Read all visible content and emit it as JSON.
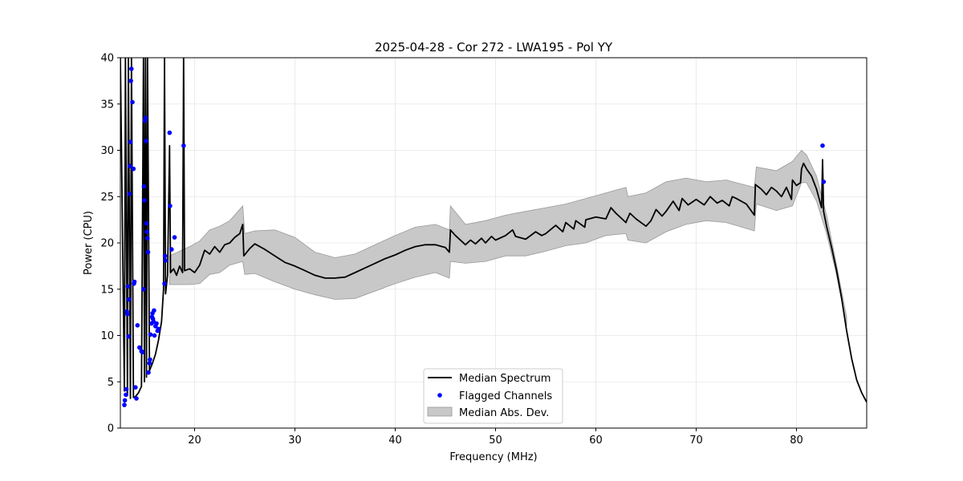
{
  "chart_data": {
    "type": "line",
    "title": "2025-04-28 - Cor 272 - LWA195 - Pol YY",
    "xlabel": "Frequency (MHz)",
    "ylabel": "Power (CPU)",
    "xlim": [
      12.6,
      87.0
    ],
    "ylim": [
      0,
      40
    ],
    "x_ticks": [
      "20",
      "30",
      "40",
      "50",
      "60",
      "70",
      "80"
    ],
    "y_ticks": [
      "0",
      "5",
      "10",
      "15",
      "20",
      "25",
      "30",
      "35",
      "40"
    ],
    "grid": true,
    "legend_position": "bottom-center",
    "colors": {
      "median": "#000000",
      "flagged": "#0000ff",
      "mad_fill": "#c8c8c8",
      "mad_edge": "#999999"
    },
    "series": [
      {
        "name": "Median Spectrum",
        "kind": "line",
        "points": [
          [
            12.6,
            40
          ],
          [
            13.0,
            4.0
          ],
          [
            13.1,
            40
          ],
          [
            13.3,
            3.5
          ],
          [
            13.4,
            40
          ],
          [
            13.6,
            3.2
          ],
          [
            13.7,
            40
          ],
          [
            13.9,
            3.3
          ],
          [
            14.1,
            3.4
          ],
          [
            14.4,
            3.8
          ],
          [
            14.7,
            4.5
          ],
          [
            14.9,
            40
          ],
          [
            15.0,
            5.0
          ],
          [
            15.1,
            40
          ],
          [
            15.2,
            5.5
          ],
          [
            15.3,
            40
          ],
          [
            15.5,
            6.2
          ],
          [
            15.8,
            7.0
          ],
          [
            16.1,
            8.0
          ],
          [
            16.4,
            9.5
          ],
          [
            16.7,
            11.5
          ],
          [
            16.9,
            15.0
          ],
          [
            17.0,
            40
          ],
          [
            17.1,
            14.5
          ],
          [
            17.3,
            16.5
          ],
          [
            17.5,
            30.5
          ],
          [
            17.6,
            16.8
          ],
          [
            17.9,
            17.2
          ],
          [
            18.2,
            16.5
          ],
          [
            18.5,
            17.5
          ],
          [
            18.8,
            16.8
          ],
          [
            18.9,
            40
          ],
          [
            19.0,
            17.0
          ],
          [
            19.5,
            17.2
          ],
          [
            20.0,
            16.8
          ],
          [
            20.5,
            17.6
          ],
          [
            21.0,
            19.2
          ],
          [
            21.5,
            18.8
          ],
          [
            22.0,
            19.6
          ],
          [
            22.5,
            19.0
          ],
          [
            23.0,
            19.8
          ],
          [
            23.5,
            20.0
          ],
          [
            24.0,
            20.6
          ],
          [
            24.5,
            21.0
          ],
          [
            24.8,
            22.0
          ],
          [
            24.9,
            18.6
          ],
          [
            25.5,
            19.4
          ],
          [
            26.0,
            19.9
          ],
          [
            27.0,
            19.3
          ],
          [
            28.0,
            18.6
          ],
          [
            29.0,
            17.9
          ],
          [
            30.0,
            17.5
          ],
          [
            31.0,
            17.0
          ],
          [
            32.0,
            16.5
          ],
          [
            33.0,
            16.2
          ],
          [
            34.0,
            16.2
          ],
          [
            35.0,
            16.3
          ],
          [
            36.0,
            16.8
          ],
          [
            37.0,
            17.3
          ],
          [
            38.0,
            17.8
          ],
          [
            39.0,
            18.3
          ],
          [
            40.0,
            18.7
          ],
          [
            41.0,
            19.2
          ],
          [
            42.0,
            19.6
          ],
          [
            43.0,
            19.8
          ],
          [
            44.0,
            19.8
          ],
          [
            45.0,
            19.5
          ],
          [
            45.4,
            19.0
          ],
          [
            45.5,
            21.4
          ],
          [
            46.0,
            20.8
          ],
          [
            47.0,
            19.8
          ],
          [
            47.5,
            20.3
          ],
          [
            48.0,
            19.9
          ],
          [
            48.6,
            20.5
          ],
          [
            49.0,
            20.0
          ],
          [
            49.6,
            20.7
          ],
          [
            50.0,
            20.3
          ],
          [
            51.0,
            20.8
          ],
          [
            51.7,
            21.4
          ],
          [
            52.0,
            20.7
          ],
          [
            53.0,
            20.4
          ],
          [
            54.0,
            21.2
          ],
          [
            54.6,
            20.8
          ],
          [
            55.0,
            21.0
          ],
          [
            56.0,
            21.9
          ],
          [
            56.7,
            21.2
          ],
          [
            57.0,
            22.2
          ],
          [
            57.8,
            21.5
          ],
          [
            58.0,
            22.4
          ],
          [
            58.9,
            21.7
          ],
          [
            59.0,
            22.5
          ],
          [
            60.0,
            22.8
          ],
          [
            61.0,
            22.6
          ],
          [
            61.5,
            23.8
          ],
          [
            62.0,
            23.2
          ],
          [
            63.0,
            22.2
          ],
          [
            63.1,
            22.5
          ],
          [
            63.4,
            23.2
          ],
          [
            64.0,
            22.6
          ],
          [
            65.0,
            21.8
          ],
          [
            65.5,
            22.4
          ],
          [
            66.0,
            23.6
          ],
          [
            66.6,
            22.9
          ],
          [
            67.0,
            23.4
          ],
          [
            67.7,
            24.5
          ],
          [
            68.3,
            23.5
          ],
          [
            68.6,
            24.8
          ],
          [
            69.2,
            24.1
          ],
          [
            70.0,
            24.7
          ],
          [
            70.8,
            24.1
          ],
          [
            71.4,
            25.0
          ],
          [
            72.1,
            24.3
          ],
          [
            72.6,
            24.6
          ],
          [
            73.3,
            24.0
          ],
          [
            73.6,
            25.0
          ],
          [
            74.0,
            24.8
          ],
          [
            75.0,
            24.2
          ],
          [
            75.8,
            23.0
          ],
          [
            75.9,
            26.3
          ],
          [
            76.5,
            25.8
          ],
          [
            77.0,
            25.2
          ],
          [
            77.5,
            26.0
          ],
          [
            78.0,
            25.6
          ],
          [
            78.5,
            25.0
          ],
          [
            79.0,
            26.0
          ],
          [
            79.5,
            24.7
          ],
          [
            79.6,
            26.8
          ],
          [
            80.0,
            26.2
          ],
          [
            80.4,
            26.5
          ],
          [
            80.5,
            28.0
          ],
          [
            80.7,
            28.6
          ],
          [
            81.0,
            28.0
          ],
          [
            81.5,
            27.2
          ],
          [
            82.0,
            25.8
          ],
          [
            82.5,
            23.8
          ],
          [
            82.6,
            29.0
          ],
          [
            82.7,
            23.4
          ],
          [
            83.0,
            21.8
          ],
          [
            83.5,
            19.5
          ],
          [
            84.0,
            17.0
          ],
          [
            84.5,
            14.0
          ],
          [
            85.0,
            10.5
          ],
          [
            85.5,
            7.5
          ],
          [
            86.0,
            5.2
          ],
          [
            86.5,
            3.8
          ],
          [
            87.0,
            2.8
          ]
        ]
      },
      {
        "name": "Flagged Channels",
        "kind": "scatter",
        "points": [
          [
            13.0,
            2.5
          ],
          [
            13.05,
            3.0
          ],
          [
            13.15,
            3.6
          ],
          [
            13.2,
            4.2
          ],
          [
            13.25,
            12.6
          ],
          [
            13.3,
            12.3
          ],
          [
            13.35,
            15.3
          ],
          [
            13.4,
            9.9
          ],
          [
            13.45,
            13.9
          ],
          [
            13.5,
            25.3
          ],
          [
            13.55,
            28.3
          ],
          [
            13.6,
            30.9
          ],
          [
            13.65,
            37.5
          ],
          [
            13.7,
            38.8
          ],
          [
            13.8,
            35.2
          ],
          [
            13.9,
            28.0
          ],
          [
            13.95,
            15.6
          ],
          [
            14.0,
            15.8
          ],
          [
            14.1,
            4.4
          ],
          [
            14.2,
            3.2
          ],
          [
            14.3,
            11.1
          ],
          [
            14.5,
            8.7
          ],
          [
            14.7,
            8.3
          ],
          [
            14.8,
            8.2
          ],
          [
            14.9,
            15.0
          ],
          [
            14.95,
            26.1
          ],
          [
            15.0,
            24.6
          ],
          [
            15.05,
            33.2
          ],
          [
            15.1,
            33.5
          ],
          [
            15.15,
            31.0
          ],
          [
            15.2,
            22.1
          ],
          [
            15.25,
            21.2
          ],
          [
            15.3,
            20.5
          ],
          [
            15.35,
            19.0
          ],
          [
            15.4,
            6.0
          ],
          [
            15.5,
            7.0
          ],
          [
            15.55,
            7.4
          ],
          [
            15.6,
            10.1
          ],
          [
            15.7,
            11.3
          ],
          [
            15.75,
            12.0
          ],
          [
            15.8,
            12.4
          ],
          [
            15.85,
            11.8
          ],
          [
            15.9,
            11.5
          ],
          [
            15.95,
            12.7
          ],
          [
            16.0,
            10.0
          ],
          [
            16.1,
            11.0
          ],
          [
            16.2,
            11.3
          ],
          [
            16.3,
            10.5
          ],
          [
            16.4,
            10.7
          ],
          [
            17.0,
            15.6
          ],
          [
            17.05,
            18.6
          ],
          [
            17.1,
            18.1
          ],
          [
            17.5,
            31.9
          ],
          [
            17.55,
            24.0
          ],
          [
            17.7,
            19.3
          ],
          [
            18.0,
            20.6
          ],
          [
            18.9,
            30.5
          ],
          [
            82.6,
            30.5
          ],
          [
            82.7,
            26.6
          ]
        ]
      },
      {
        "name": "Median Abs. Dev.",
        "kind": "band",
        "x": [
          17.5,
          18.5,
          19.5,
          20.5,
          21.5,
          22.5,
          23.5,
          24.8,
          25.0,
          26.0,
          28.0,
          30.0,
          32.0,
          34.0,
          36.0,
          38.0,
          40.0,
          42.0,
          44.0,
          45.4,
          45.5,
          47.0,
          49.0,
          51.0,
          53.0,
          55.0,
          57.0,
          59.0,
          61.0,
          63.0,
          63.2,
          65.0,
          67.0,
          69.0,
          71.0,
          73.0,
          75.8,
          76.0,
          78.0,
          79.6,
          80.5,
          81.0,
          82.0,
          83.0,
          84.0,
          85.0
        ],
        "lower": [
          15.5,
          15.5,
          15.5,
          15.6,
          16.6,
          16.8,
          17.6,
          18.0,
          16.6,
          16.7,
          15.8,
          15.0,
          14.4,
          13.9,
          14.0,
          14.8,
          15.6,
          16.3,
          16.8,
          16.2,
          18.0,
          17.8,
          18.0,
          18.6,
          18.6,
          19.1,
          19.7,
          20.0,
          20.8,
          21.0,
          20.3,
          20.0,
          21.2,
          22.0,
          22.4,
          22.2,
          21.3,
          24.2,
          23.5,
          24.0,
          26.5,
          26.5,
          24.5,
          21.0,
          16.5,
          11.0
        ],
        "upper": [
          18.6,
          19.1,
          19.6,
          20.2,
          21.4,
          21.8,
          22.4,
          24.0,
          21.0,
          21.3,
          21.4,
          20.6,
          19.0,
          18.4,
          18.8,
          19.8,
          20.8,
          21.7,
          22.0,
          21.4,
          24.0,
          22.0,
          22.4,
          23.0,
          23.4,
          23.8,
          24.2,
          24.8,
          25.4,
          26.0,
          25.0,
          25.4,
          26.6,
          27.0,
          26.6,
          26.8,
          26.0,
          28.2,
          27.8,
          28.8,
          30.0,
          29.5,
          27.2,
          23.0,
          17.6,
          12.0
        ]
      }
    ]
  }
}
